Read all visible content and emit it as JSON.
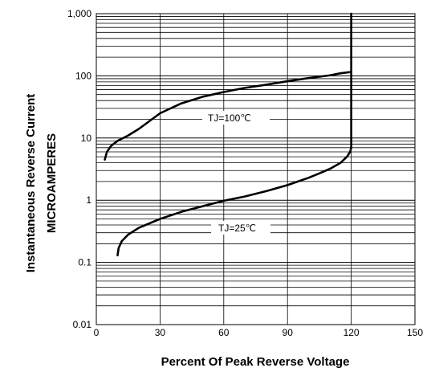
{
  "chart_data": {
    "type": "line",
    "title": "",
    "xlabel": "Percent Of Peak Reverse Voltage",
    "ylabel_lines": [
      "Instantaneous Reverse Current",
      "MICROAMPERES"
    ],
    "x_ticks": [
      0,
      30,
      60,
      90,
      120,
      150
    ],
    "x_tick_labels": [
      "0",
      "30",
      "60",
      "90",
      "120",
      "150"
    ],
    "y_ticks": [
      0.01,
      0.1,
      1,
      10,
      100,
      1000
    ],
    "y_tick_labels": [
      "0.01",
      "0.1",
      "1",
      "10",
      "100",
      "1,000"
    ],
    "xlim": [
      0,
      150
    ],
    "ylim": [
      0.01,
      1000
    ],
    "y_scale": "log",
    "grid": true,
    "series": [
      {
        "name": "TJ=100℃",
        "x": [
          4,
          5,
          7,
          10,
          15,
          20,
          30,
          40,
          50,
          60,
          70,
          80,
          90,
          100,
          110,
          115,
          119.5,
          120,
          120,
          120
        ],
        "y": [
          4.5,
          6,
          7.5,
          9,
          11,
          14,
          25,
          36,
          46,
          55,
          64,
          72,
          82,
          92,
          102,
          110,
          115,
          118,
          400,
          1000
        ]
      },
      {
        "name": "TJ=25℃",
        "x": [
          10,
          10.5,
          12,
          15,
          20,
          30,
          40,
          50,
          60,
          70,
          80,
          90,
          100,
          105,
          110,
          115,
          118,
          119.5,
          120,
          120
        ],
        "y": [
          0.13,
          0.17,
          0.22,
          0.28,
          0.36,
          0.5,
          0.65,
          0.8,
          0.98,
          1.15,
          1.4,
          1.75,
          2.3,
          2.7,
          3.2,
          4,
          5,
          6,
          7,
          118
        ]
      }
    ],
    "series_labels": [
      "TJ=100℃",
      "TJ=25℃"
    ]
  }
}
